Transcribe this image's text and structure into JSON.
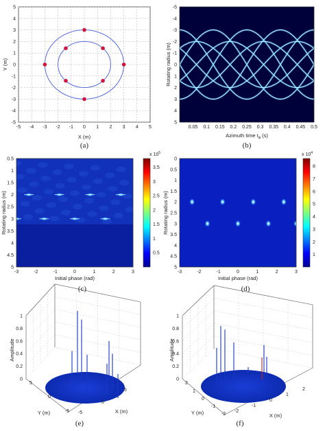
{
  "captions": [
    "(a)",
    "(b)",
    "(c)",
    "(d)",
    "(e)",
    "(f)"
  ],
  "panel_a": {
    "xlabel": "X (m)",
    "ylabel": "Y (m)",
    "ticks": [
      "-5",
      "-4",
      "-3",
      "-2",
      "-1",
      "0",
      "1",
      "2",
      "3",
      "4",
      "5"
    ],
    "circle_radii": [
      2,
      3
    ],
    "point_color": "#d0163e",
    "circle_color": "#4a5ed8"
  },
  "panel_b": {
    "xlabel": "Azimuth time t",
    "xlabel_sub": "a",
    "xlabel_unit": " (s)",
    "ylabel": "Rotating radius (m)",
    "xticks": [
      "0.05",
      "0.1",
      "0.15",
      "0.2",
      "0.25",
      "0.3",
      "0.35",
      "0.4",
      "0.45",
      "0.5"
    ],
    "yticks": [
      "-5",
      "-4",
      "-3",
      "-2",
      "-1",
      "0",
      "1",
      "2",
      "3",
      "4",
      "5"
    ]
  },
  "panel_c": {
    "xlabel": "Initial phase (rad)",
    "ylabel": "Rotating radius (m)",
    "xticks": [
      "-3",
      "-2",
      "-1",
      "0",
      "1",
      "2",
      "3"
    ],
    "yticks": [
      "0.5",
      "1",
      "1.5",
      "2",
      "2.5",
      "3",
      "3.5",
      "4",
      "4.5",
      "5"
    ],
    "cb_exp": "x 10",
    "cb_exp_pow": "5",
    "cb_ticks": [
      "0.5",
      "1",
      "1.5",
      "2",
      "2.5",
      "3",
      "3.5"
    ]
  },
  "panel_d": {
    "xlabel": "Initial phase (rad)",
    "ylabel": "Rotating radius (m)",
    "xticks": [
      "-3",
      "-2",
      "-1",
      "0",
      "1",
      "2",
      "3"
    ],
    "yticks": [
      "0",
      "0.5",
      "1",
      "1.5",
      "2",
      "2.5",
      "3",
      "3.5",
      "4",
      "4.5",
      "5"
    ],
    "cb_exp": "x 10",
    "cb_exp_pow": "4",
    "cb_ticks": [
      "1",
      "2",
      "3",
      "4",
      "5",
      "6",
      "7",
      "8"
    ]
  },
  "panel_e": {
    "zlabel": "Amplitude",
    "xlabel": "X (m)",
    "ylabel": "Y (m)",
    "zticks": [
      "0",
      "0.2",
      "0.4",
      "0.6",
      "0.8",
      "1"
    ],
    "yticks": [
      "5",
      "0",
      "-5"
    ],
    "xticks": [
      "-5",
      "0",
      "5"
    ]
  },
  "panel_f": {
    "zlabel": "Amplitude",
    "xlabel": "X (m)",
    "ylabel": "Y (m)",
    "zticks": [
      "0",
      "0.2",
      "0.4",
      "0.6",
      "0.8",
      "1"
    ],
    "yticks": [
      "2",
      "1",
      "0",
      "-1",
      "-2"
    ],
    "xticks": [
      "-2",
      "-1",
      "0",
      "1",
      "2"
    ]
  },
  "chart_data": [
    {
      "type": "scatter",
      "title": "",
      "xlabel": "X (m)",
      "ylabel": "Y (m)",
      "xlim": [
        -5,
        5
      ],
      "ylim": [
        -5,
        5
      ],
      "grid": true,
      "series": [
        {
          "x": [
            0,
            3,
            0,
            -3,
            1.41,
            -1.41,
            1.41,
            -1.41
          ],
          "y": [
            3,
            0,
            -3,
            0,
            1.41,
            1.41,
            -1.41,
            -1.41
          ]
        }
      ]
    },
    {
      "type": "line",
      "xlabel": "Azimuth time t_a (s)",
      "ylabel": "Rotating radius (m)",
      "xlim": [
        0,
        0.5
      ],
      "ylim": [
        -5,
        5
      ],
      "series": [
        {
          "amplitude": 3,
          "phase_deg": 0
        },
        {
          "amplitude": 3,
          "phase_deg": 90
        },
        {
          "amplitude": 3,
          "phase_deg": 180
        },
        {
          "amplitude": 3,
          "phase_deg": 270
        },
        {
          "amplitude": 2,
          "phase_deg": 45
        },
        {
          "amplitude": 2,
          "phase_deg": 135
        },
        {
          "amplitude": 2,
          "phase_deg": 225
        },
        {
          "amplitude": 2,
          "phase_deg": 315
        }
      ]
    },
    {
      "type": "heatmap",
      "xlabel": "Initial phase (rad)",
      "ylabel": "Rotating radius (m)",
      "xlim": [
        -3,
        3
      ],
      "ylim": [
        0.5,
        5
      ],
      "peaks": [
        {
          "phase": -2.36,
          "radius": 2
        },
        {
          "phase": -0.79,
          "radius": 2
        },
        {
          "phase": 0.79,
          "radius": 2
        },
        {
          "phase": 2.36,
          "radius": 2
        },
        {
          "phase": -3.0,
          "radius": 3
        },
        {
          "phase": -1.57,
          "radius": 3
        },
        {
          "phase": 0.0,
          "radius": 3
        },
        {
          "phase": 1.57,
          "radius": 3
        }
      ]
    },
    {
      "type": "heatmap",
      "xlabel": "Initial phase (rad)",
      "ylabel": "Rotating radius (m)",
      "xlim": [
        -3,
        3
      ],
      "ylim": [
        0,
        5
      ],
      "peaks": [
        {
          "phase": -2.36,
          "radius": 2
        },
        {
          "phase": -0.79,
          "radius": 2
        },
        {
          "phase": 0.79,
          "radius": 2
        },
        {
          "phase": 2.36,
          "radius": 2
        },
        {
          "phase": -1.57,
          "radius": 3
        },
        {
          "phase": 0.0,
          "radius": 3
        },
        {
          "phase": 1.57,
          "radius": 3
        },
        {
          "phase": 3.0,
          "radius": 3
        }
      ]
    },
    {
      "type": "bar",
      "zlabel": "Amplitude",
      "xlabel": "X (m)",
      "ylabel": "Y (m)",
      "zlim": [
        0,
        1
      ],
      "stems": [
        1.0,
        0.95,
        0.55,
        0.6,
        0.62,
        0.55,
        0.5,
        0.38
      ]
    },
    {
      "type": "bar",
      "zlabel": "Amplitude",
      "xlabel": "X (m)",
      "ylabel": "Y (m)",
      "zlim": [
        0,
        1
      ],
      "stems": [
        0.88,
        0.78,
        0.62,
        0.75,
        0.6,
        0.35,
        0.35,
        0.12
      ]
    }
  ]
}
